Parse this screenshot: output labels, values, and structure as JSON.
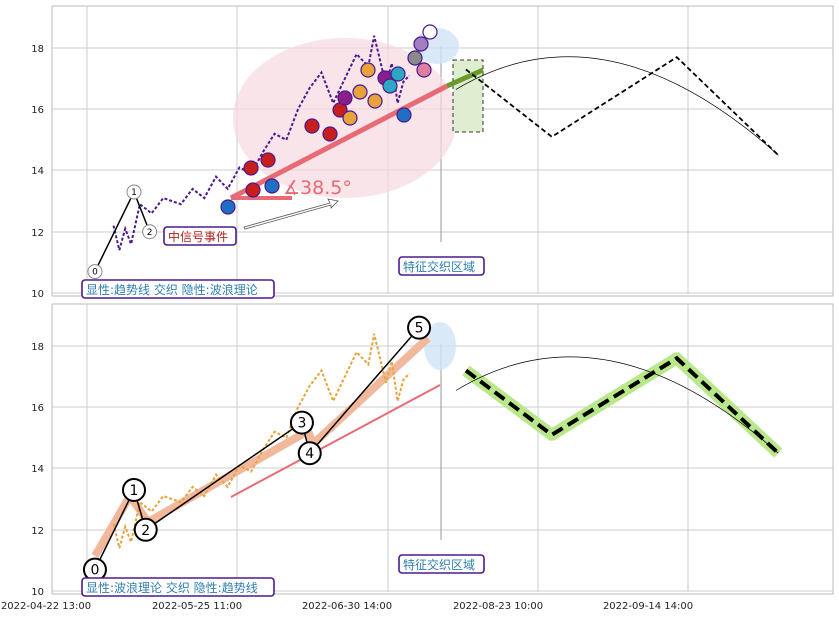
{
  "colors": {
    "grid": "#cccccc",
    "price_top": "#4b1a8c",
    "price_bottom": "#e8a33d",
    "trend_fill": "#f7d9e0",
    "trend_line": "#e86a74",
    "wave_line": "#000000",
    "forecast_green": "#6a9a2a",
    "highlight_green": "#b9e88a",
    "label_border": "#4b1a8c",
    "label_text": "#2f7fb0",
    "event_text": "#b02020"
  },
  "chart_data": [
    {
      "type": "line",
      "panel": "top",
      "ylim": [
        10,
        19
      ],
      "yticks": [
        "10",
        "12",
        "14",
        "16",
        "18"
      ],
      "xticks": [
        "2022-04-22 13:00",
        "2022-05-25 11:00",
        "2022-06-30 14:00",
        "2022-08-23 10:00",
        "2022-09-14 14:00"
      ],
      "annotations": {
        "angle": "∡38.5°",
        "event": "中信号事件",
        "zone": "特征交织区域",
        "caption": "显性:趋势线 交织 隐性:波浪理论"
      },
      "wave_points": [
        {
          "label": "0",
          "x": 0.5,
          "y": 10.7
        },
        {
          "label": "1",
          "x": 5.5,
          "y": 13.3
        },
        {
          "label": "2",
          "x": 7.5,
          "y": 12.0
        }
      ],
      "forecast": [
        {
          "x": 53,
          "y": 17.3
        },
        {
          "x": 64,
          "y": 15.1
        },
        {
          "x": 80,
          "y": 17.7
        },
        {
          "x": 93,
          "y": 14.5
        }
      ]
    },
    {
      "type": "line",
      "panel": "bottom",
      "ylim": [
        10,
        19
      ],
      "yticks": [
        "10",
        "12",
        "14",
        "16",
        "18"
      ],
      "xticks": [
        "2022-04-22 13:00",
        "2022-05-25 11:00",
        "2022-06-30 14:00",
        "2022-08-23 10:00",
        "2022-09-14 14:00"
      ],
      "annotations": {
        "zone": "特征交织区域",
        "caption": "显性:波浪理论 交织 隐性:趋势线"
      },
      "wave_points": [
        {
          "label": "0",
          "x": 0.5,
          "y": 10.7
        },
        {
          "label": "1",
          "x": 5.5,
          "y": 13.3
        },
        {
          "label": "2",
          "x": 7.0,
          "y": 12.0
        },
        {
          "label": "3",
          "x": 27.0,
          "y": 15.5
        },
        {
          "label": "4",
          "x": 28.0,
          "y": 14.5
        },
        {
          "label": "5",
          "x": 42.0,
          "y": 18.6
        }
      ],
      "forecast": [
        {
          "x": 53,
          "y": 17.2
        },
        {
          "x": 64,
          "y": 15.1
        },
        {
          "x": 80,
          "y": 17.6
        },
        {
          "x": 93,
          "y": 14.5
        }
      ]
    }
  ]
}
